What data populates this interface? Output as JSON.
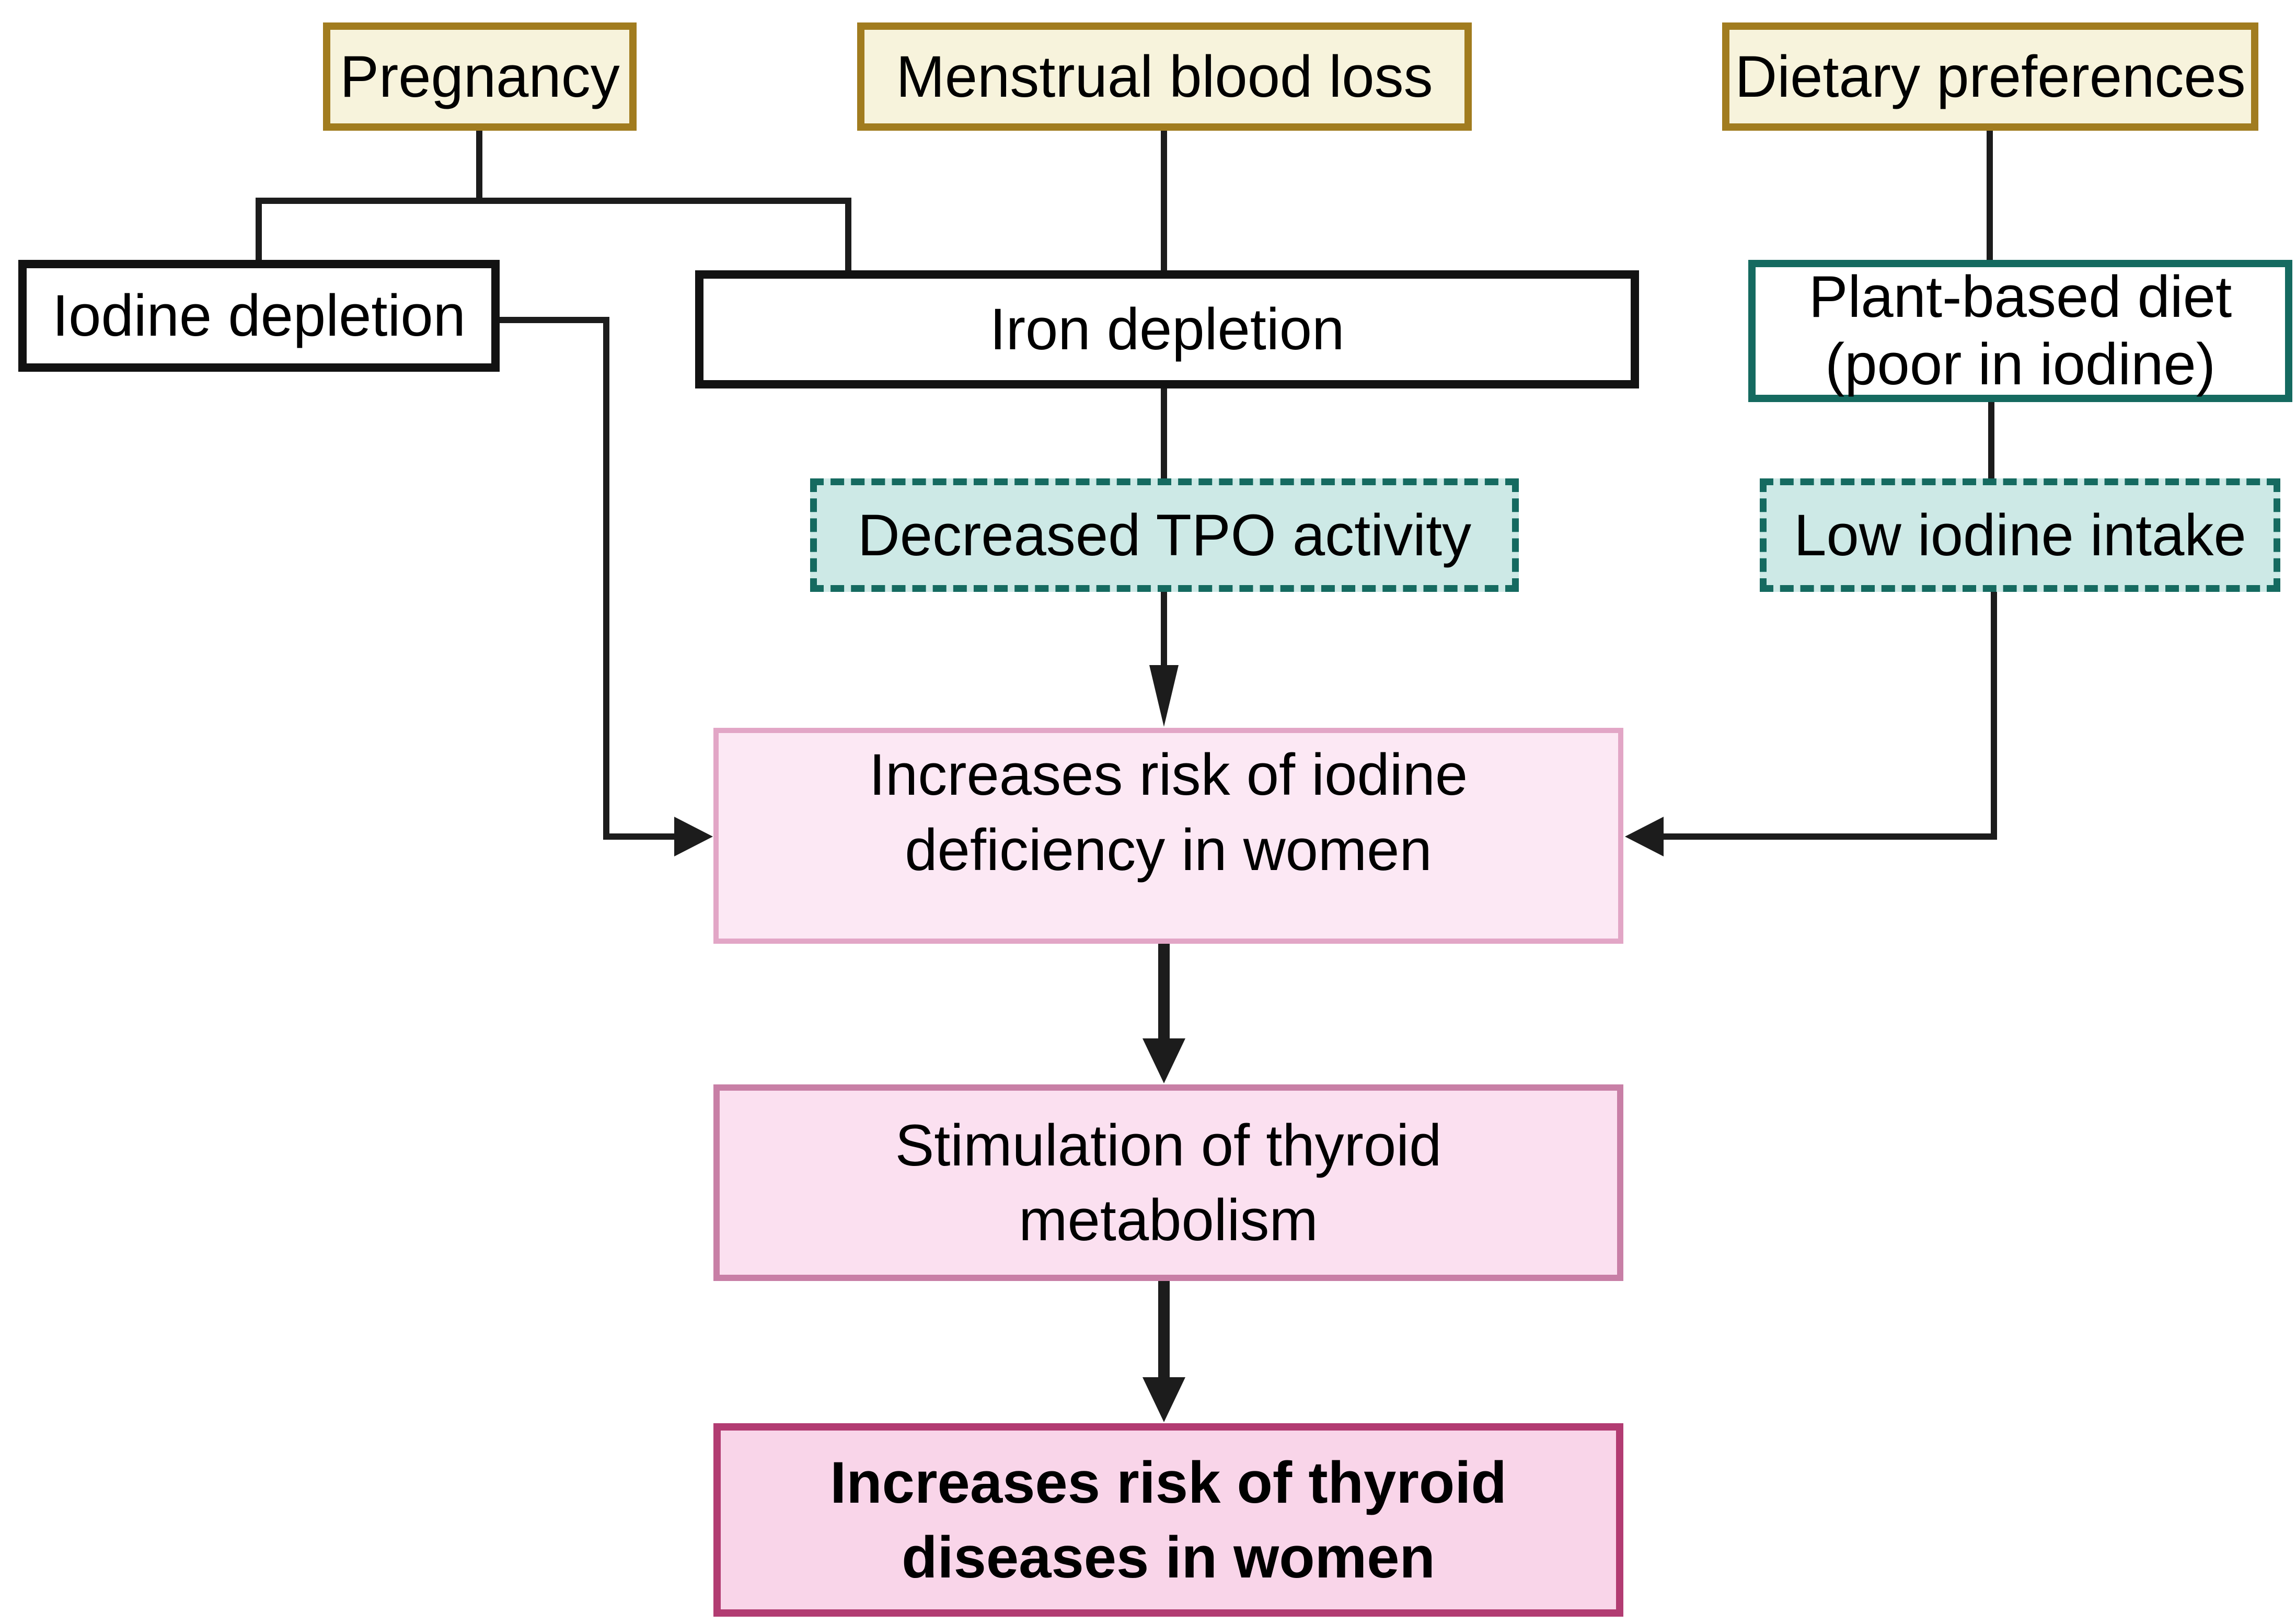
{
  "palette": {
    "cause_fill": "#F7F3DC",
    "cause_border": "#A17C1F",
    "plain_border": "#121212",
    "teal_border": "#156A60",
    "teal_fill": "#CDE9E6",
    "pink1_fill": "#FCE8F4",
    "pink1_border": "#E2A6C6",
    "pink2_fill": "#FBE0F0",
    "pink2_border": "#C87FA6",
    "pink3_fill": "#F9D5E9",
    "pink3_border": "#B23C72",
    "line": "#1C1C1C"
  },
  "nodes": {
    "pregnancy": {
      "label": "Pregnancy"
    },
    "menstrual": {
      "label": "Menstrual blood loss"
    },
    "dietary": {
      "label": "Dietary preferences"
    },
    "iodine_depletion": {
      "label": "Iodine depletion"
    },
    "iron_depletion": {
      "label": "Iron depletion"
    },
    "plant_diet": {
      "line1": "Plant-based diet",
      "line2": "(poor in iodine)"
    },
    "tpo": {
      "label": "Decreased TPO activity"
    },
    "low_iodine": {
      "label": "Low iodine intake"
    },
    "risk_iodine": {
      "line1": "Increases risk of iodine",
      "line2": "deficiency in women"
    },
    "stimulation": {
      "line1": "Stimulation of thyroid",
      "line2": "metabolism"
    },
    "risk_thyroid": {
      "line1": "Increases risk of thyroid",
      "line2": "diseases in women"
    }
  }
}
